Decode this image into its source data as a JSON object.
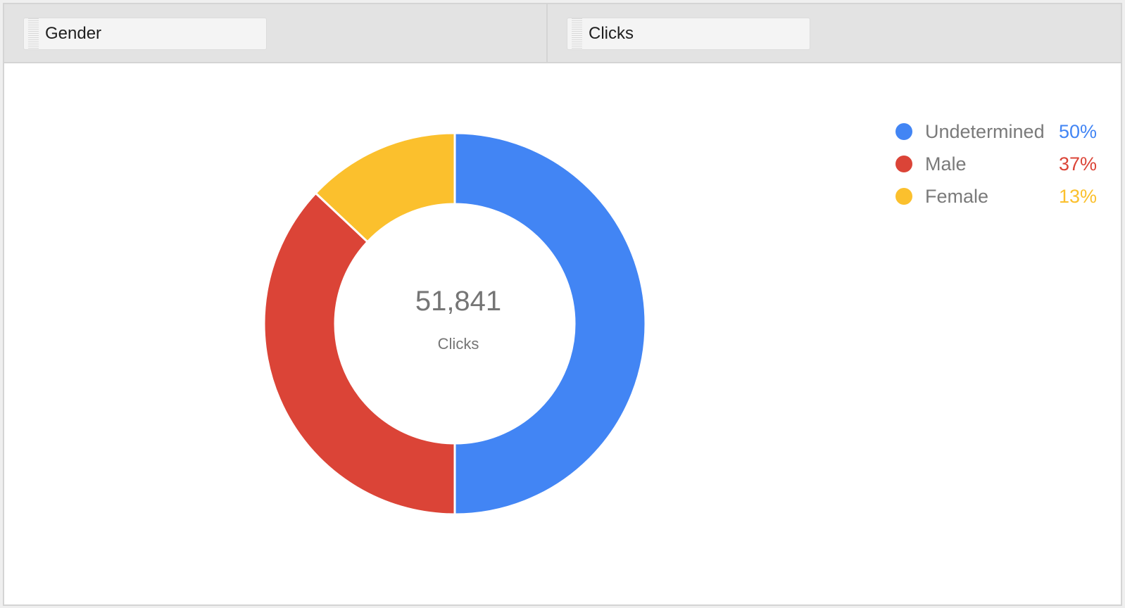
{
  "header": {
    "dimension_chip": {
      "label": "Gender",
      "icon": "drag-handle-icon"
    },
    "metric_chip": {
      "label": "Clicks",
      "icon": "drag-handle-icon"
    }
  },
  "center": {
    "value": "51,841",
    "label": "Clicks"
  },
  "legend": [
    {
      "name": "Undetermined",
      "pct": "50%",
      "color": "#4285f4"
    },
    {
      "name": "Male",
      "pct": "37%",
      "color": "#db4437"
    },
    {
      "name": "Female",
      "pct": "13%",
      "color": "#fbc02d"
    }
  ],
  "chart_data": {
    "type": "pie",
    "subtype": "donut",
    "title": "Gender",
    "metric": "Clicks",
    "total": 51841,
    "total_label": "51,841",
    "categories": [
      "Undetermined",
      "Male",
      "Female"
    ],
    "values": [
      50,
      37,
      13
    ],
    "unit": "%",
    "colors": [
      "#4285f4",
      "#db4437",
      "#fbc02d"
    ],
    "legend_position": "top-right",
    "start_angle": "12 o'clock, clockwise"
  }
}
